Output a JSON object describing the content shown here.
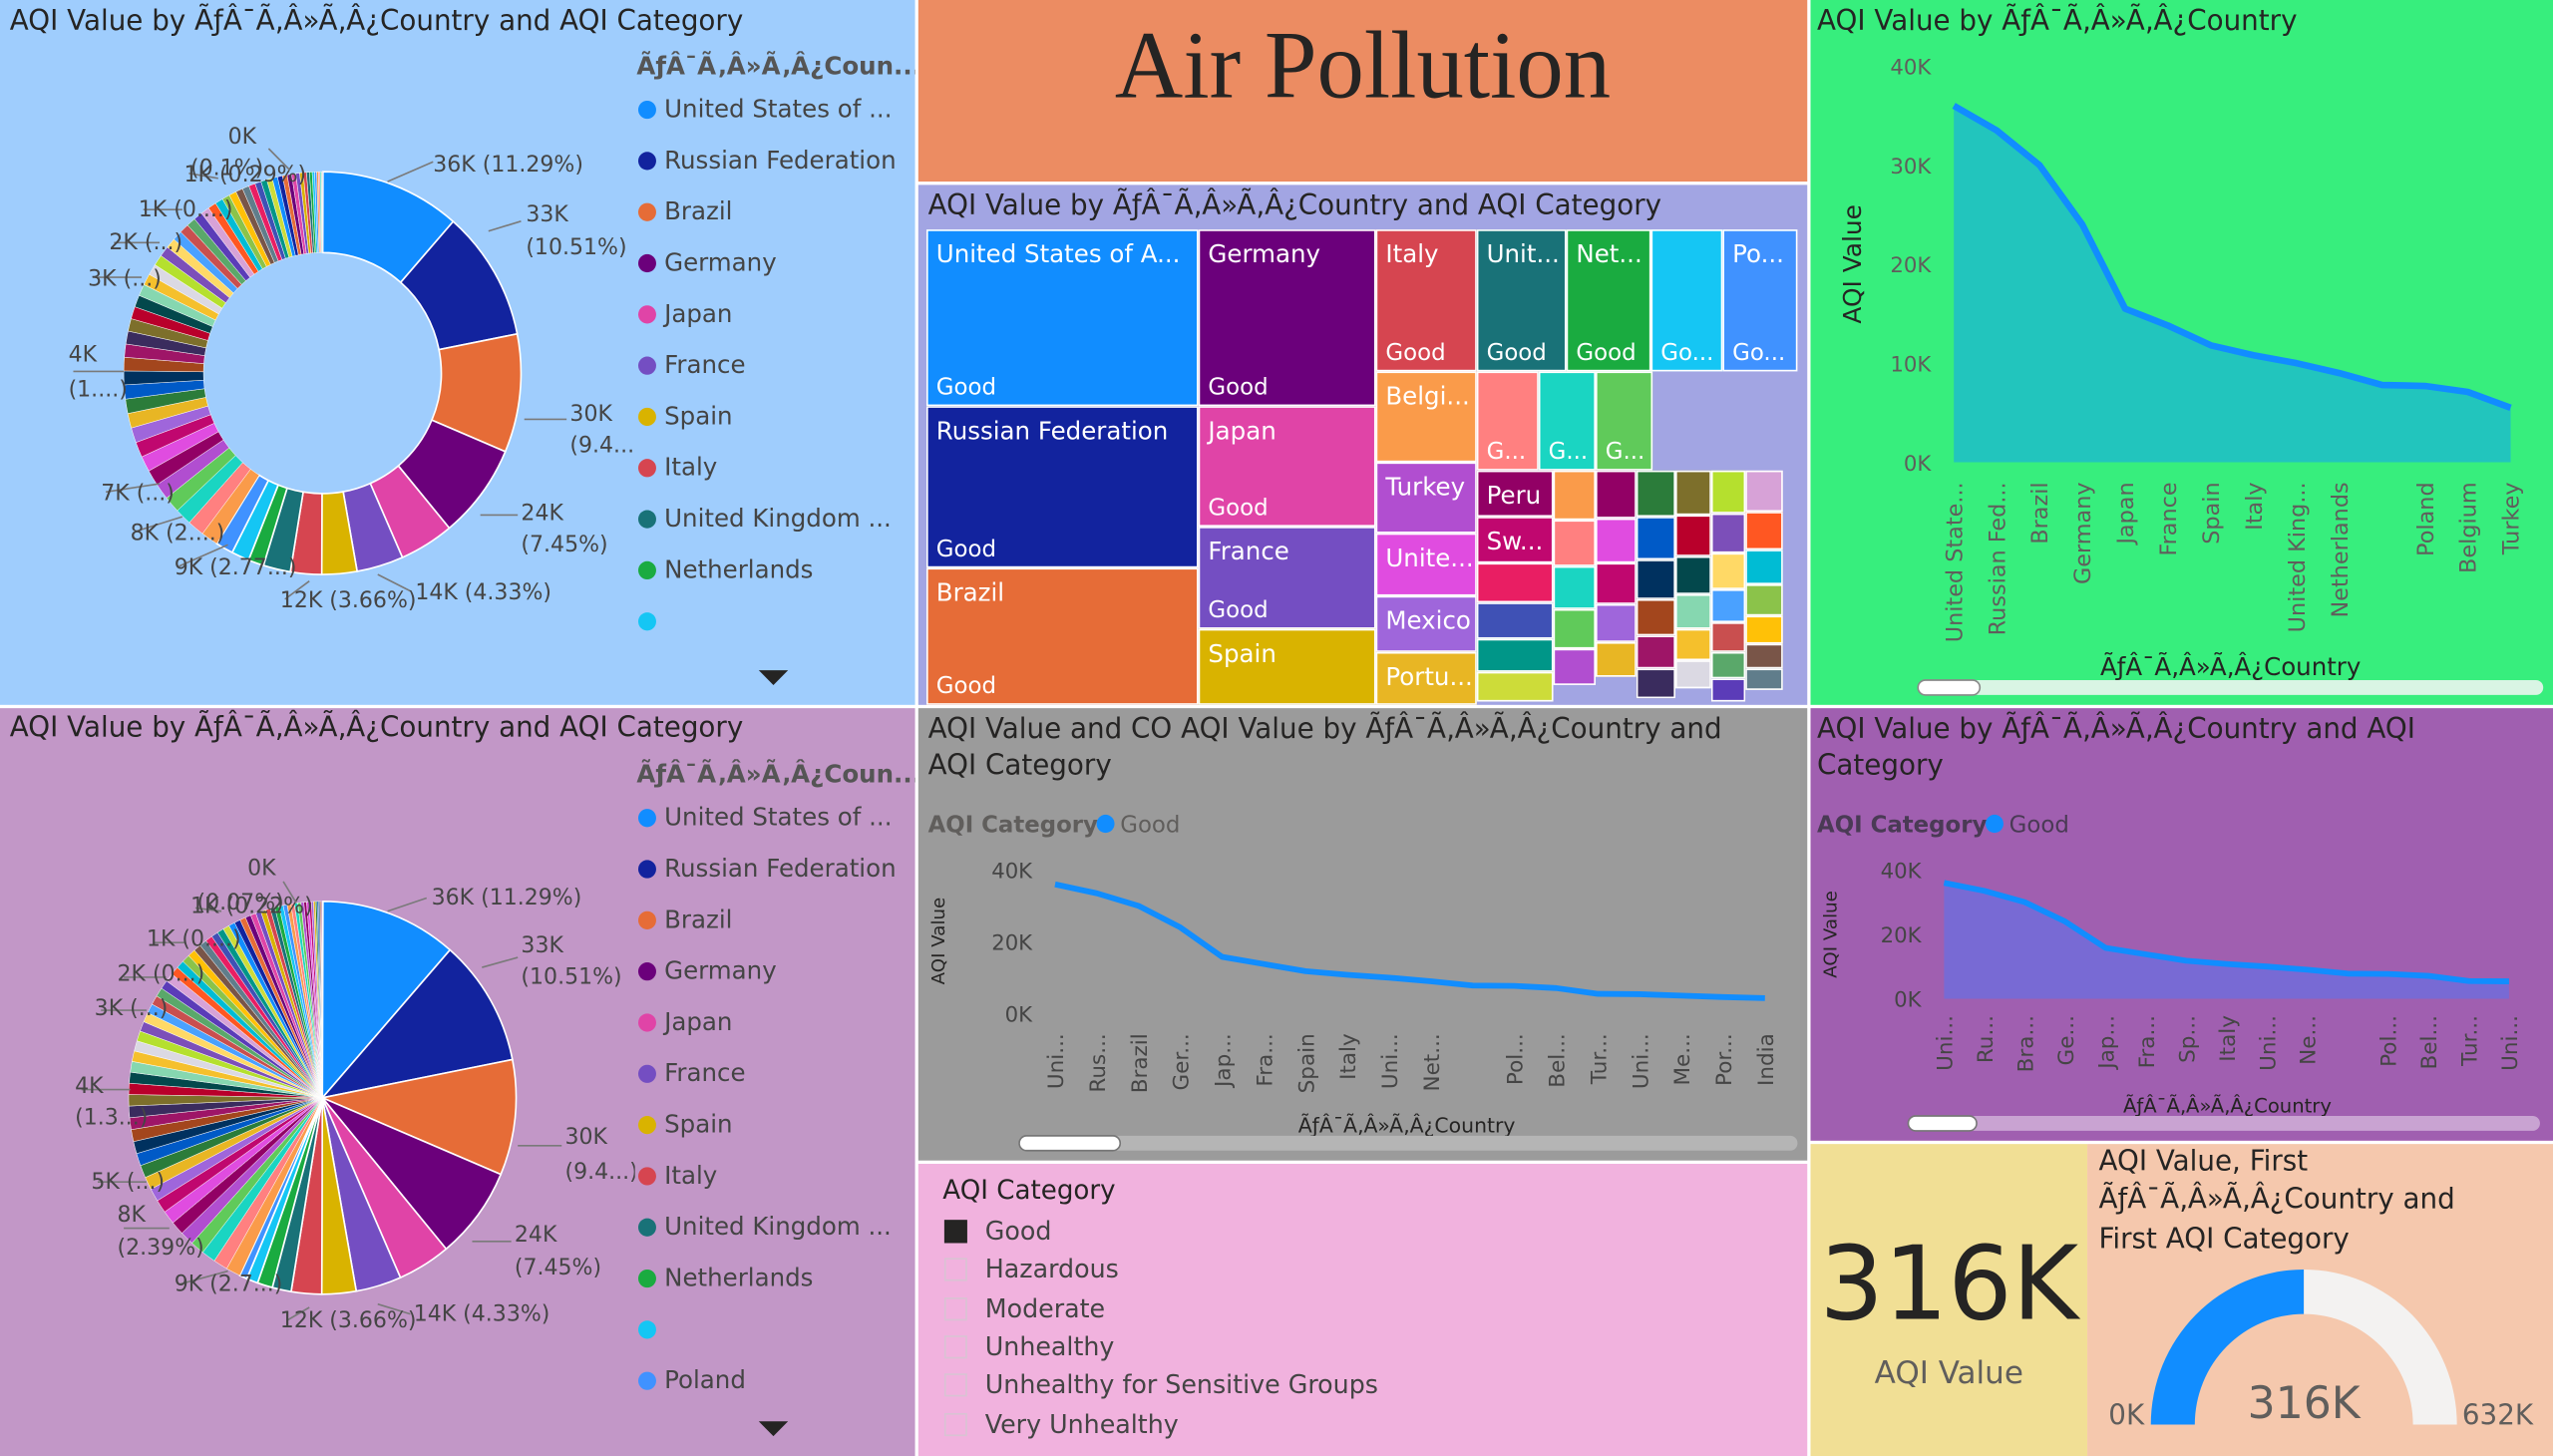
{
  "colors": {
    "donut_bg": "#9fcdfd",
    "pie_bg": "#c297c7",
    "title_bg": "#ec8c62",
    "area_bg": "#37ee7d",
    "treemap_bg": "#a2a5e3",
    "line_bg": "#9b9b9b",
    "area2_bg": "#a05fb0",
    "slicer_bg": "#f1b2de",
    "card_bg": "#f1df95",
    "gauge_bg": "#f5c8ad",
    "series": "#118dff"
  },
  "header": {
    "title": "Air Pollution"
  },
  "donut": {
    "title": "AQI Value by ÃƒÂ¯Ã‚Â»Ã‚Â¿Country and AQI Category",
    "legend_title": "ÃƒÂ¯Ã‚Â»Ã‚Â¿Coun...",
    "legend": [
      {
        "label": "United States of ...",
        "color": "#118dff"
      },
      {
        "label": "Russian Federation",
        "color": "#12239e"
      },
      {
        "label": "Brazil",
        "color": "#e66c37"
      },
      {
        "label": "Germany",
        "color": "#6b007b"
      },
      {
        "label": "Japan",
        "color": "#e044a7"
      },
      {
        "label": "France",
        "color": "#744ec2"
      },
      {
        "label": "Spain",
        "color": "#d9b300"
      },
      {
        "label": "Italy",
        "color": "#d64550"
      },
      {
        "label": "United Kingdom ...",
        "color": "#197278"
      },
      {
        "label": "Netherlands",
        "color": "#1aab40"
      },
      {
        "label": "",
        "color": "#15c6f4"
      }
    ],
    "labels": [
      "36K (11.29%)",
      "33K",
      "(10.51%)",
      "30K",
      "(9.4...)",
      "24K",
      "(7.45%)",
      "14K (4.33%)",
      "12K (3.66%)",
      "9K (2.77...)",
      "8K (2....)",
      "7K (...)",
      "4K",
      "(1....)",
      "3K (...)",
      "2K (...)",
      "1K (0....)",
      "1K (0.29%)",
      "(0.1%)",
      "0K"
    ]
  },
  "pie": {
    "title": "AQI Value by ÃƒÂ¯Ã‚Â»Ã‚Â¿Country and AQI Category",
    "legend_title": "ÃƒÂ¯Ã‚Â»Ã‚Â¿Coun...",
    "legend": [
      {
        "label": "United States of ...",
        "color": "#118dff"
      },
      {
        "label": "Russian Federation",
        "color": "#12239e"
      },
      {
        "label": "Brazil",
        "color": "#e66c37"
      },
      {
        "label": "Germany",
        "color": "#6b007b"
      },
      {
        "label": "Japan",
        "color": "#e044a7"
      },
      {
        "label": "France",
        "color": "#744ec2"
      },
      {
        "label": "Spain",
        "color": "#d9b300"
      },
      {
        "label": "Italy",
        "color": "#d64550"
      },
      {
        "label": "United Kingdom ...",
        "color": "#197278"
      },
      {
        "label": "Netherlands",
        "color": "#1aab40"
      },
      {
        "label": "",
        "color": "#15c6f4"
      },
      {
        "label": "Poland",
        "color": "#4092ff"
      }
    ],
    "labels": [
      "36K (11.29%)",
      "33K",
      "(10.51%)",
      "30K",
      "(9.4...)",
      "24K",
      "(7.45%)",
      "14K (4.33%)",
      "12K (3.66%)",
      "9K (2.7...)",
      "8K",
      "(2.39%)",
      "5K (...)",
      "4K",
      "(1.3...)",
      "3K (...)",
      "2K (0...)",
      "1K (0....)",
      "1K (0.22%)",
      "(0.07%)",
      "0K"
    ]
  },
  "treemap": {
    "title": "AQI Value by ÃƒÂ¯Ã‚Â»Ã‚Â¿Country and AQI Category",
    "cells": [
      {
        "name": "United States of A...",
        "cat": "Good",
        "color": "#118dff"
      },
      {
        "name": "Russian Federation",
        "cat": "Good",
        "color": "#12239e"
      },
      {
        "name": "Brazil",
        "cat": "Good",
        "color": "#e66c37"
      },
      {
        "name": "Germany",
        "cat": "Good",
        "color": "#6b007b"
      },
      {
        "name": "Japan",
        "cat": "Good",
        "color": "#e044a7"
      },
      {
        "name": "France",
        "cat": "Good",
        "color": "#744ec2"
      },
      {
        "name": "Spain",
        "cat": "",
        "color": "#d9b300"
      },
      {
        "name": "Italy",
        "cat": "Good",
        "color": "#d64550"
      },
      {
        "name": "Unit...",
        "cat": "Good",
        "color": "#197278"
      },
      {
        "name": "Net...",
        "cat": "Good",
        "color": "#1aab40"
      },
      {
        "name": "",
        "cat": "Go...",
        "color": "#15c6f4"
      },
      {
        "name": "Po...",
        "cat": "Go...",
        "color": "#4092ff"
      },
      {
        "name": "Belgi...",
        "cat": "",
        "color": "#fa9b4a"
      },
      {
        "name": "",
        "cat": "G...",
        "color": "#ff8080"
      },
      {
        "name": "",
        "cat": "G...",
        "color": "#1ad5c2"
      },
      {
        "name": "",
        "cat": "G...",
        "color": "#60ca5a"
      },
      {
        "name": "Turkey",
        "cat": "",
        "color": "#b14ed0"
      },
      {
        "name": "Peru",
        "cat": "",
        "color": "#920065"
      },
      {
        "name": "Unite...",
        "cat": "",
        "color": "#e04ce0"
      },
      {
        "name": "Sw...",
        "cat": "",
        "color": "#c0076f"
      },
      {
        "name": "Mexico",
        "cat": "",
        "color": "#9f66db"
      },
      {
        "name": "Portu...",
        "cat": "",
        "color": "#e8b624"
      }
    ]
  },
  "area1": {
    "title": "AQI Value by ÃƒÂ¯Ã‚Â»Ã‚Â¿Country",
    "ylabel": "AQI Value",
    "xlabel": "ÃƒÂ¯Ã‚Â»Ã‚Â¿Country",
    "yticks": [
      "40K",
      "30K",
      "20K",
      "10K",
      "0K"
    ]
  },
  "line": {
    "title_line1": "AQI Value and CO AQI Value by ÃƒÂ¯Ã‚Â»Ã‚Â¿Country and",
    "title_line2": "AQI Category",
    "legend_label": "AQI Category",
    "legend_item": "Good",
    "ylabel": "AQI Value",
    "xlabel": "ÃƒÂ¯Ã‚Â»Ã‚Â¿Country",
    "yticks": [
      "40K",
      "20K",
      "0K"
    ]
  },
  "area2": {
    "title_line1": "AQI Value by ÃƒÂ¯Ã‚Â»Ã‚Â¿Country and AQI",
    "title_line2": "Category",
    "legend_label": "AQI Category",
    "legend_item": "Good",
    "ylabel": "AQI Value",
    "xlabel": "ÃƒÂ¯Ã‚Â»Ã‚Â¿Country",
    "yticks": [
      "40K",
      "20K",
      "0K"
    ]
  },
  "slicer": {
    "title": "AQI Category",
    "items": [
      {
        "label": "Good",
        "checked": true
      },
      {
        "label": "Hazardous",
        "checked": false
      },
      {
        "label": "Moderate",
        "checked": false
      },
      {
        "label": "Unhealthy",
        "checked": false
      },
      {
        "label": "Unhealthy for Sensitive Groups",
        "checked": false
      },
      {
        "label": "Very Unhealthy",
        "checked": false
      }
    ]
  },
  "card": {
    "value": "316K",
    "label": "AQI Value"
  },
  "gauge": {
    "title_line1": "AQI Value, First",
    "title_line2": "ÃƒÂ¯Ã‚Â»Ã‚Â¿Country and",
    "title_line3": "First AQI Category",
    "value_label": "316K",
    "min_label": "0K",
    "max_label": "632K",
    "fraction": 0.5
  },
  "chart_data": [
    {
      "type": "pie",
      "variant": "donut",
      "categories": [
        "United States of America",
        "Russian Federation",
        "Brazil",
        "Germany",
        "Japan",
        "France",
        "Spain",
        "Italy",
        "United Kingdom",
        "Netherlands"
      ],
      "values": [
        36000,
        33000,
        30000,
        24000,
        14000,
        12000,
        9000,
        8000,
        7000,
        4000
      ],
      "other_small_slices": 60
    },
    {
      "type": "pie",
      "categories": [
        "United States of America",
        "Russian Federation",
        "Brazil",
        "Germany",
        "Japan",
        "France",
        "Spain",
        "Italy",
        "United Kingdom",
        "Netherlands",
        "",
        "Poland"
      ],
      "values": [
        36000,
        33000,
        30000,
        24000,
        14000,
        12000,
        9000,
        8000,
        5000,
        4000,
        3000,
        2000
      ],
      "other_small_slices": 70
    },
    {
      "type": "area",
      "categories": [
        "United State...",
        "Russian Fed...",
        "Brazil",
        "Germany",
        "Japan",
        "France",
        "Spain",
        "Italy",
        "United King...",
        "Netherlands",
        "",
        "Poland",
        "Belgium",
        "Turkey"
      ],
      "values": [
        36000,
        33500,
        30000,
        24000,
        15500,
        13800,
        11800,
        10800,
        10000,
        9000,
        7800,
        7700,
        7100,
        5500
      ],
      "xlabel": "ÃƒÂ¯Ã‚Â»Ã‚Â¿Country",
      "ylabel": "AQI Value",
      "ylim": [
        0,
        40000
      ]
    },
    {
      "type": "line",
      "categories": [
        "Uni...",
        "Rus...",
        "Brazil",
        "Ger...",
        "Jap...",
        "Fra...",
        "Spain",
        "Italy",
        "Uni...",
        "Net...",
        "",
        "Pol...",
        "Bel...",
        "Tur...",
        "Uni...",
        "Me...",
        "Por...",
        "India"
      ],
      "series": [
        {
          "name": "Good",
          "values": [
            36000,
            33500,
            30000,
            24000,
            15800,
            13800,
            11800,
            10800,
            10000,
            9000,
            7800,
            7700,
            7100,
            5500,
            5400,
            5000,
            4600,
            4300
          ]
        }
      ],
      "xlabel": "ÃƒÂ¯Ã‚Â»Ã‚Â¿Country",
      "ylabel": "AQI Value",
      "ylim": [
        0,
        40000
      ]
    },
    {
      "type": "area",
      "categories": [
        "Uni...",
        "Ru...",
        "Bra...",
        "Ge...",
        "Jap...",
        "Fra...",
        "Sp...",
        "Italy",
        "Uni...",
        "Ne...",
        "",
        "Pol...",
        "Bel...",
        "Tur...",
        "Uni..."
      ],
      "series": [
        {
          "name": "Good",
          "values": [
            36000,
            33500,
            30000,
            24000,
            15800,
            13800,
            11800,
            10800,
            10000,
            9000,
            7800,
            7700,
            7100,
            5500,
            5400
          ]
        }
      ],
      "xlabel": "ÃƒÂ¯Ã‚Â»Ã‚Â¿Country",
      "ylabel": "AQI Value",
      "ylim": [
        0,
        40000
      ]
    }
  ]
}
